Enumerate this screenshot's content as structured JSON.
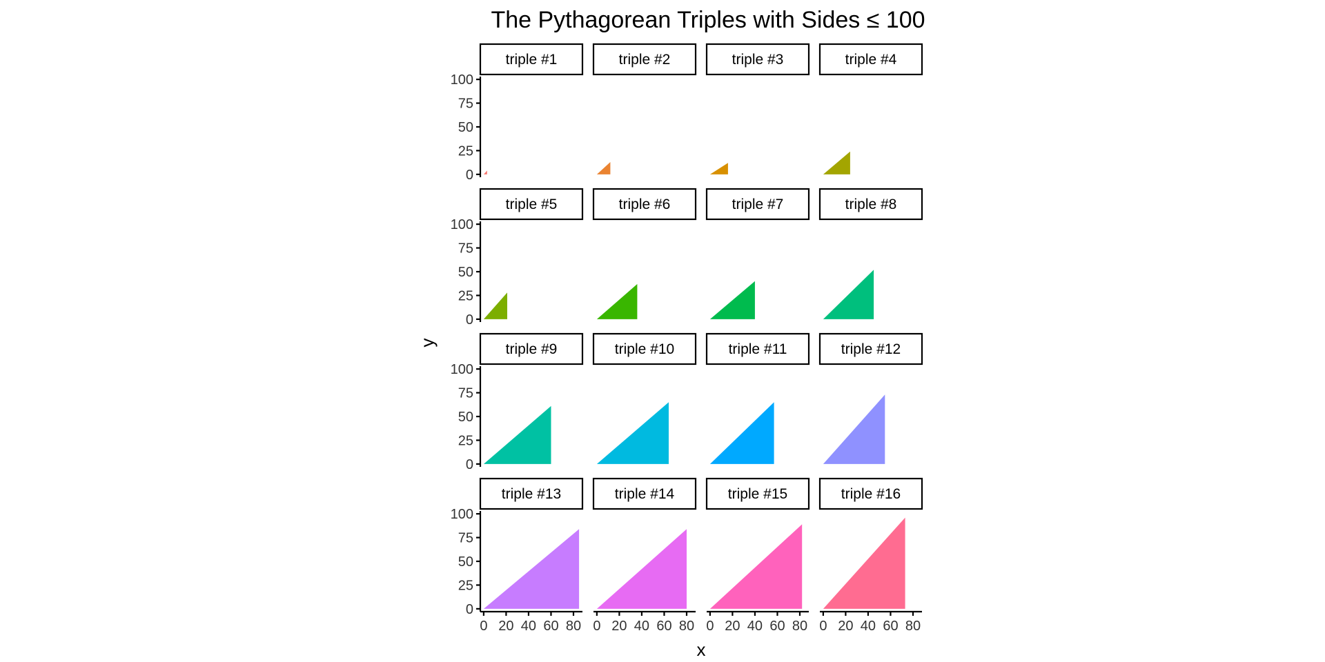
{
  "chart_data": {
    "type": "area",
    "title": "The Pythagorean Triples with Sides ≤ 100",
    "xlabel": "x",
    "ylabel": "y",
    "xlim": [
      -3,
      88
    ],
    "ylim": [
      -3,
      103
    ],
    "x_ticks": [
      0,
      20,
      40,
      60,
      80
    ],
    "y_ticks": [
      0,
      25,
      50,
      75,
      100
    ],
    "grid": false,
    "legend": "none",
    "facet_layout": {
      "rows": 4,
      "cols": 4
    },
    "panels": [
      {
        "label": "triple #1",
        "a": 3,
        "b": 4,
        "c": 5,
        "color": "#F8766D"
      },
      {
        "label": "triple #2",
        "a": 12,
        "b": 13,
        "c": 13,
        "color": "#EA8331"
      },
      {
        "label": "triple #3",
        "a": 16,
        "b": 12,
        "c": 20,
        "color": "#D89000"
      },
      {
        "label": "triple #4",
        "a": 24,
        "b": 24,
        "c": 34,
        "color": "#A3A500"
      },
      {
        "label": "triple #5",
        "a": 21,
        "b": 28,
        "c": 35,
        "color": "#7CAE00"
      },
      {
        "label": "triple #6",
        "a": 36,
        "b": 37,
        "c": 52,
        "color": "#39B600"
      },
      {
        "label": "triple #7",
        "a": 40,
        "b": 40,
        "c": 57,
        "color": "#00BB4E"
      },
      {
        "label": "triple #8",
        "a": 45,
        "b": 52,
        "c": 69,
        "color": "#00BF7D"
      },
      {
        "label": "triple #9",
        "a": 60,
        "b": 61,
        "c": 86,
        "color": "#00C1A3"
      },
      {
        "label": "triple #10",
        "a": 64,
        "b": 65,
        "c": 91,
        "color": "#00BAE0"
      },
      {
        "label": "triple #11",
        "a": 57,
        "b": 65,
        "c": 86,
        "color": "#00A9FF"
      },
      {
        "label": "triple #12",
        "a": 55,
        "b": 73,
        "c": 91,
        "color": "#8F91FF"
      },
      {
        "label": "triple #13",
        "a": 85,
        "b": 84,
        "c": 119,
        "color": "#C77CFF"
      },
      {
        "label": "triple #14",
        "a": 80,
        "b": 84,
        "c": 116,
        "color": "#E76BF3"
      },
      {
        "label": "triple #15",
        "a": 82,
        "b": 89,
        "c": 121,
        "color": "#FF62BC"
      },
      {
        "label": "triple #16",
        "a": 73,
        "b": 96,
        "c": 121,
        "color": "#FF6C91"
      }
    ]
  }
}
